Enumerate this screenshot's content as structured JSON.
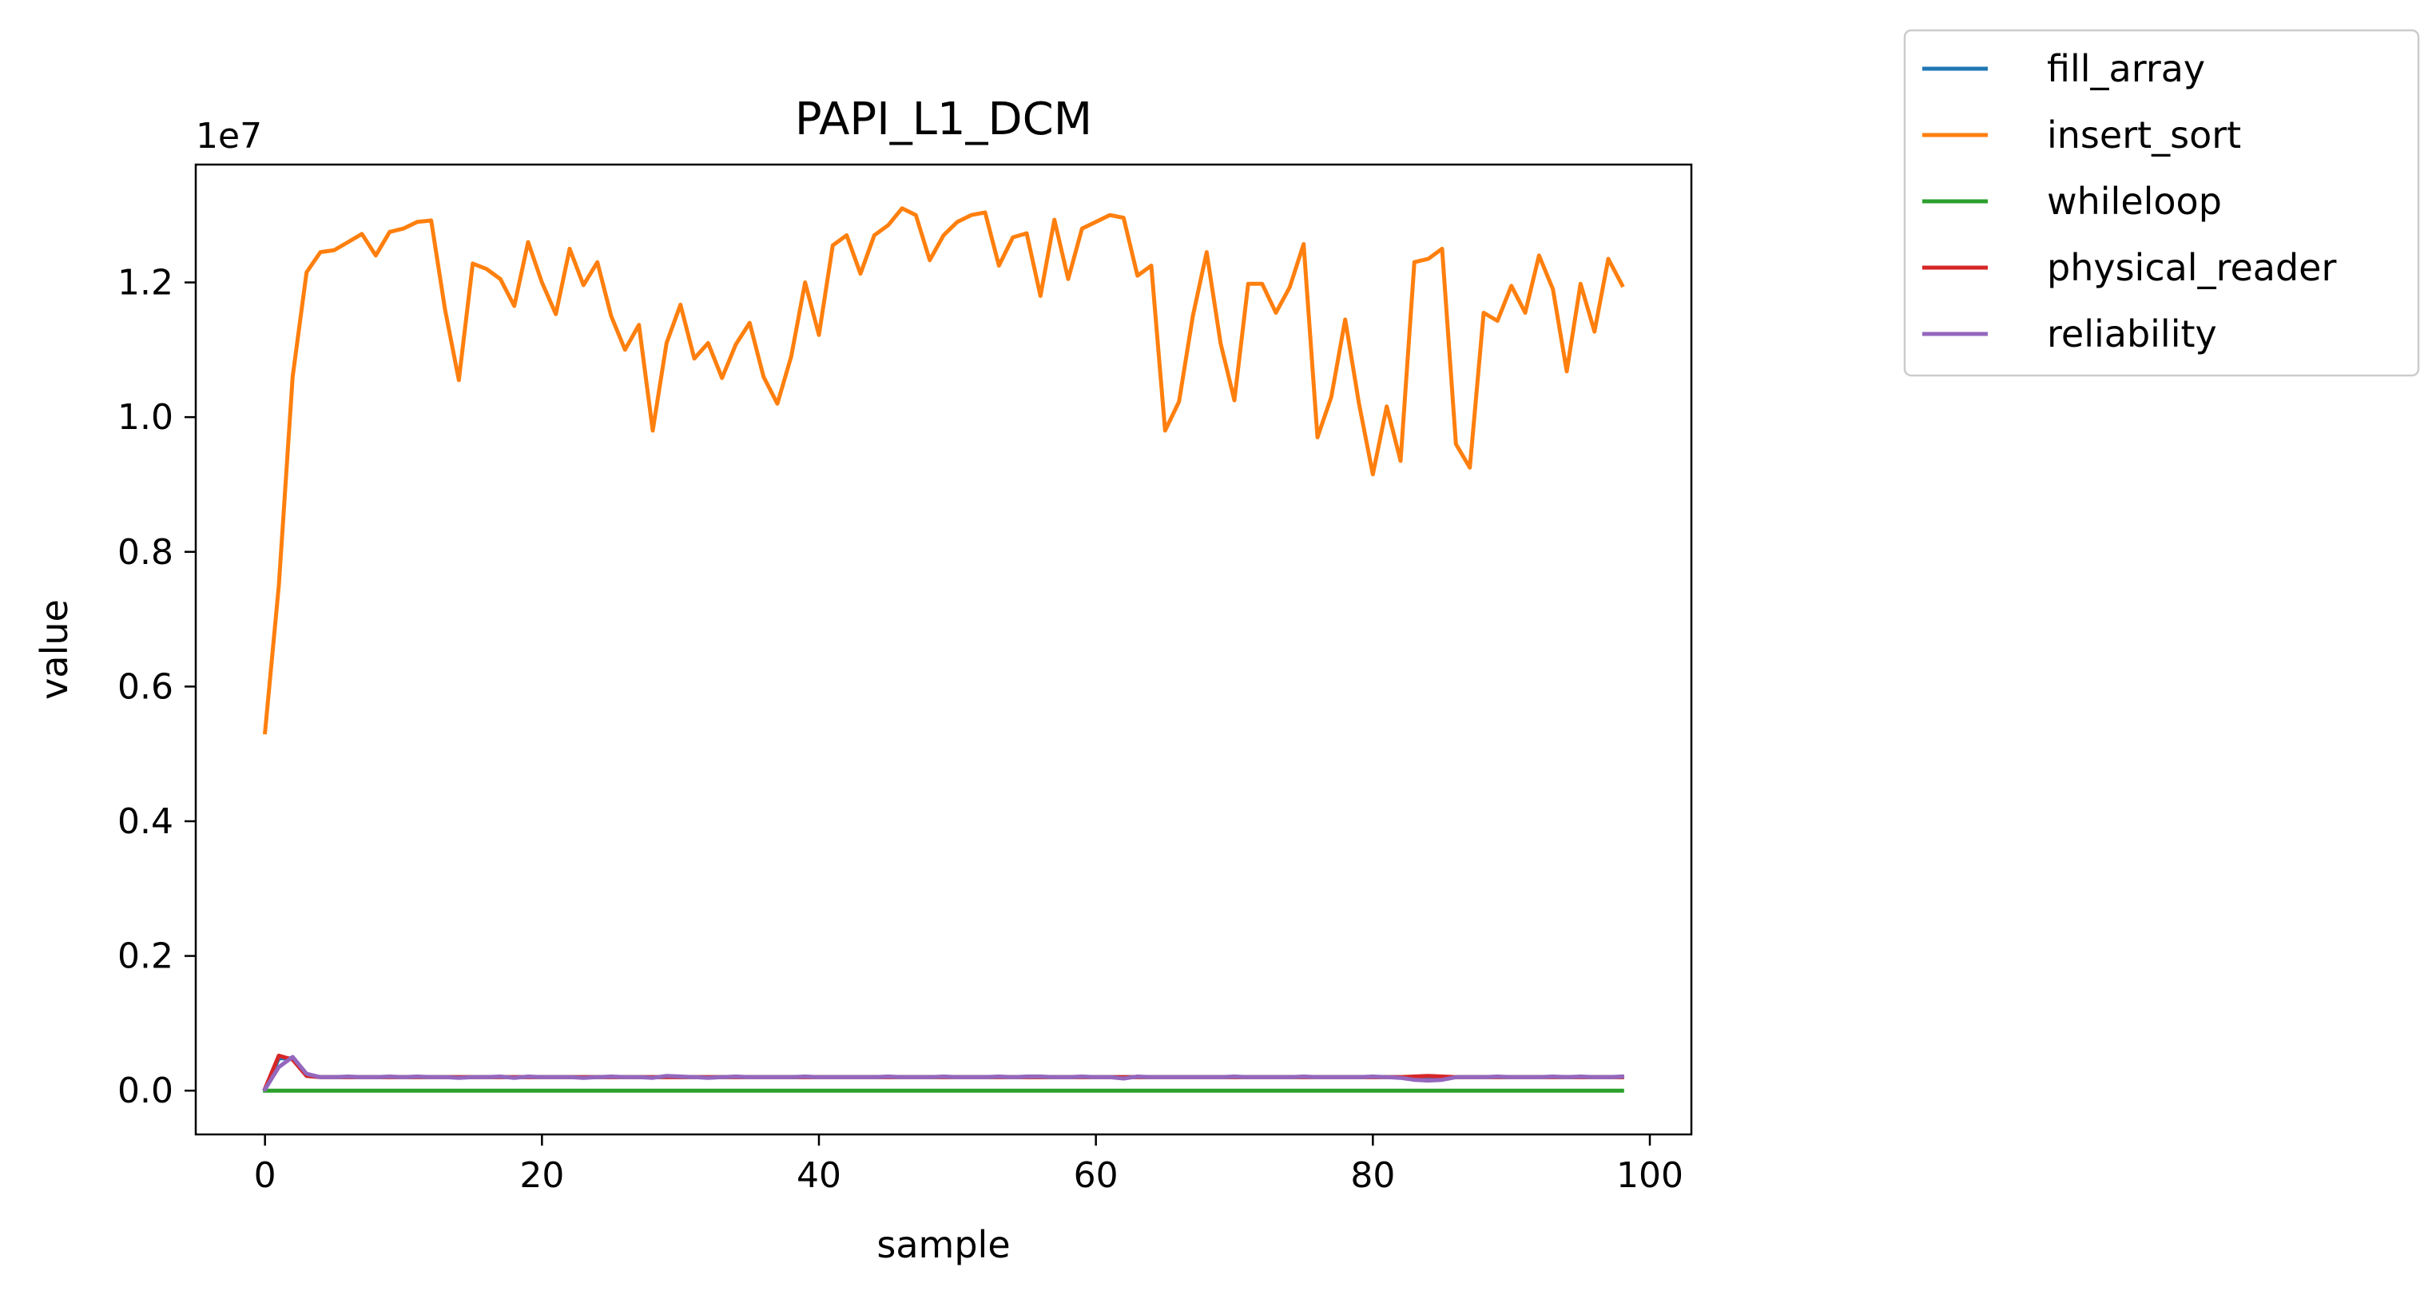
{
  "chart_data": {
    "type": "line",
    "title": "PAPI_L1_DCM",
    "xlabel": "sample",
    "ylabel": "value",
    "y_offset_text": "1e7",
    "xlim": [
      -5,
      103
    ],
    "ylim": [
      -0.065,
      1.375
    ],
    "x_ticks": [
      0,
      20,
      40,
      60,
      80,
      100
    ],
    "x_tick_labels": [
      "0",
      "20",
      "40",
      "60",
      "80",
      "100"
    ],
    "y_ticks": [
      0.0,
      0.2,
      0.4,
      0.6,
      0.8,
      1.0,
      1.2
    ],
    "y_tick_labels": [
      "0.0",
      "0.2",
      "0.4",
      "0.6",
      "0.8",
      "1.0",
      "1.2"
    ],
    "grid": false,
    "legend_position": "outside-top-right",
    "x": [
      0,
      1,
      2,
      3,
      4,
      5,
      6,
      7,
      8,
      9,
      10,
      11,
      12,
      13,
      14,
      15,
      16,
      17,
      18,
      19,
      20,
      21,
      22,
      23,
      24,
      25,
      26,
      27,
      28,
      29,
      30,
      31,
      32,
      33,
      34,
      35,
      36,
      37,
      38,
      39,
      40,
      41,
      42,
      43,
      44,
      45,
      46,
      47,
      48,
      49,
      50,
      51,
      52,
      53,
      54,
      55,
      56,
      57,
      58,
      59,
      60,
      61,
      62,
      63,
      64,
      65,
      66,
      67,
      68,
      69,
      70,
      71,
      72,
      73,
      74,
      75,
      76,
      77,
      78,
      79,
      80,
      81,
      82,
      83,
      84,
      85,
      86,
      87,
      88,
      89,
      90,
      91,
      92,
      93,
      94,
      95,
      96,
      97,
      98
    ],
    "series": [
      {
        "name": "fill_array",
        "color": "#1f77b4",
        "values": [
          0.002,
          0.048,
          0.048,
          0.022,
          0.02,
          0.02,
          0.02,
          0.02,
          0.02,
          0.02,
          0.02,
          0.02,
          0.02,
          0.02,
          0.02,
          0.02,
          0.02,
          0.02,
          0.02,
          0.02,
          0.02,
          0.02,
          0.02,
          0.02,
          0.02,
          0.02,
          0.02,
          0.02,
          0.02,
          0.02,
          0.02,
          0.02,
          0.02,
          0.02,
          0.02,
          0.02,
          0.02,
          0.02,
          0.02,
          0.02,
          0.02,
          0.02,
          0.02,
          0.02,
          0.02,
          0.02,
          0.02,
          0.02,
          0.02,
          0.02,
          0.02,
          0.02,
          0.02,
          0.02,
          0.02,
          0.02,
          0.02,
          0.02,
          0.02,
          0.02,
          0.02,
          0.02,
          0.02,
          0.02,
          0.02,
          0.02,
          0.02,
          0.02,
          0.02,
          0.02,
          0.02,
          0.02,
          0.02,
          0.02,
          0.02,
          0.02,
          0.02,
          0.02,
          0.02,
          0.02,
          0.02,
          0.02,
          0.02,
          0.017,
          0.016,
          0.017,
          0.02,
          0.02,
          0.02,
          0.02,
          0.02,
          0.02,
          0.02,
          0.02,
          0.02,
          0.02,
          0.02,
          0.02,
          0.02
        ]
      },
      {
        "name": "insert_sort",
        "color": "#ff7f0e",
        "values": [
          0.532,
          0.75,
          1.06,
          1.215,
          1.245,
          1.248,
          1.26,
          1.272,
          1.24,
          1.275,
          1.28,
          1.29,
          1.292,
          1.16,
          1.055,
          1.228,
          1.22,
          1.205,
          1.165,
          1.26,
          1.2,
          1.153,
          1.25,
          1.196,
          1.23,
          1.15,
          1.1,
          1.137,
          0.98,
          1.11,
          1.167,
          1.087,
          1.11,
          1.058,
          1.108,
          1.14,
          1.06,
          1.02,
          1.09,
          1.2,
          1.122,
          1.255,
          1.27,
          1.213,
          1.27,
          1.285,
          1.31,
          1.3,
          1.233,
          1.27,
          1.29,
          1.3,
          1.304,
          1.225,
          1.267,
          1.273,
          1.18,
          1.293,
          1.205,
          1.28,
          1.29,
          1.3,
          1.296,
          1.21,
          1.225,
          0.98,
          1.023,
          1.15,
          1.245,
          1.11,
          1.025,
          1.198,
          1.198,
          1.155,
          1.193,
          1.257,
          0.97,
          1.03,
          1.145,
          1.02,
          0.915,
          1.016,
          0.935,
          1.23,
          1.235,
          1.25,
          0.96,
          0.925,
          1.155,
          1.143,
          1.195,
          1.155,
          1.24,
          1.19,
          1.068,
          1.198,
          1.127,
          1.235,
          1.196
        ]
      },
      {
        "name": "whileloop",
        "color": "#2ca02c",
        "values": [
          0.0,
          0.0,
          0.0,
          0.0,
          0.0,
          0.0,
          0.0,
          0.0,
          0.0,
          0.0,
          0.0,
          0.0,
          0.0,
          0.0,
          0.0,
          0.0,
          0.0,
          0.0,
          0.0,
          0.0,
          0.0,
          0.0,
          0.0,
          0.0,
          0.0,
          0.0,
          0.0,
          0.0,
          0.0,
          0.0,
          0.0,
          0.0,
          0.0,
          0.0,
          0.0,
          0.0,
          0.0,
          0.0,
          0.0,
          0.0,
          0.0,
          0.0,
          0.0,
          0.0,
          0.0,
          0.0,
          0.0,
          0.0,
          0.0,
          0.0,
          0.0,
          0.0,
          0.0,
          0.0,
          0.0,
          0.0,
          0.0,
          0.0,
          0.0,
          0.0,
          0.0,
          0.0,
          0.0,
          0.0,
          0.0,
          0.0,
          0.0,
          0.0,
          0.0,
          0.0,
          0.0,
          0.0,
          0.0,
          0.0,
          0.0,
          0.0,
          0.0,
          0.0,
          0.0,
          0.0,
          0.0,
          0.0,
          0.0,
          0.0,
          0.0,
          0.0,
          0.0,
          0.0,
          0.0,
          0.0,
          0.0,
          0.0,
          0.0,
          0.0,
          0.0,
          0.0,
          0.0,
          0.0,
          0.0
        ]
      },
      {
        "name": "physical_reader",
        "color": "#d62728",
        "values": [
          0.003,
          0.052,
          0.046,
          0.022,
          0.02,
          0.02,
          0.02,
          0.02,
          0.02,
          0.02,
          0.02,
          0.02,
          0.02,
          0.02,
          0.02,
          0.02,
          0.02,
          0.02,
          0.02,
          0.02,
          0.02,
          0.02,
          0.02,
          0.02,
          0.02,
          0.02,
          0.02,
          0.02,
          0.02,
          0.02,
          0.02,
          0.02,
          0.02,
          0.02,
          0.02,
          0.02,
          0.02,
          0.02,
          0.02,
          0.02,
          0.02,
          0.02,
          0.02,
          0.02,
          0.02,
          0.02,
          0.02,
          0.02,
          0.02,
          0.02,
          0.02,
          0.02,
          0.02,
          0.02,
          0.02,
          0.02,
          0.02,
          0.02,
          0.02,
          0.02,
          0.02,
          0.02,
          0.02,
          0.02,
          0.02,
          0.02,
          0.02,
          0.02,
          0.02,
          0.02,
          0.02,
          0.02,
          0.02,
          0.02,
          0.02,
          0.02,
          0.02,
          0.02,
          0.02,
          0.02,
          0.02,
          0.02,
          0.02,
          0.021,
          0.022,
          0.021,
          0.02,
          0.02,
          0.02,
          0.02,
          0.02,
          0.02,
          0.02,
          0.02,
          0.02,
          0.02,
          0.02,
          0.02,
          0.02
        ]
      },
      {
        "name": "reliability",
        "color": "#9467bd",
        "values": [
          0.002,
          0.035,
          0.05,
          0.025,
          0.02,
          0.02,
          0.021,
          0.02,
          0.02,
          0.021,
          0.02,
          0.021,
          0.02,
          0.02,
          0.019,
          0.02,
          0.02,
          0.021,
          0.019,
          0.021,
          0.02,
          0.02,
          0.02,
          0.019,
          0.02,
          0.021,
          0.02,
          0.02,
          0.019,
          0.022,
          0.021,
          0.02,
          0.019,
          0.02,
          0.021,
          0.02,
          0.02,
          0.02,
          0.02,
          0.021,
          0.02,
          0.02,
          0.02,
          0.02,
          0.02,
          0.021,
          0.02,
          0.02,
          0.02,
          0.021,
          0.02,
          0.02,
          0.02,
          0.021,
          0.02,
          0.021,
          0.021,
          0.02,
          0.02,
          0.021,
          0.02,
          0.02,
          0.018,
          0.021,
          0.02,
          0.02,
          0.02,
          0.02,
          0.02,
          0.02,
          0.021,
          0.02,
          0.02,
          0.02,
          0.02,
          0.021,
          0.02,
          0.02,
          0.02,
          0.02,
          0.021,
          0.02,
          0.019,
          0.016,
          0.015,
          0.016,
          0.02,
          0.02,
          0.02,
          0.021,
          0.02,
          0.02,
          0.02,
          0.021,
          0.02,
          0.021,
          0.02,
          0.02,
          0.021
        ]
      }
    ]
  }
}
